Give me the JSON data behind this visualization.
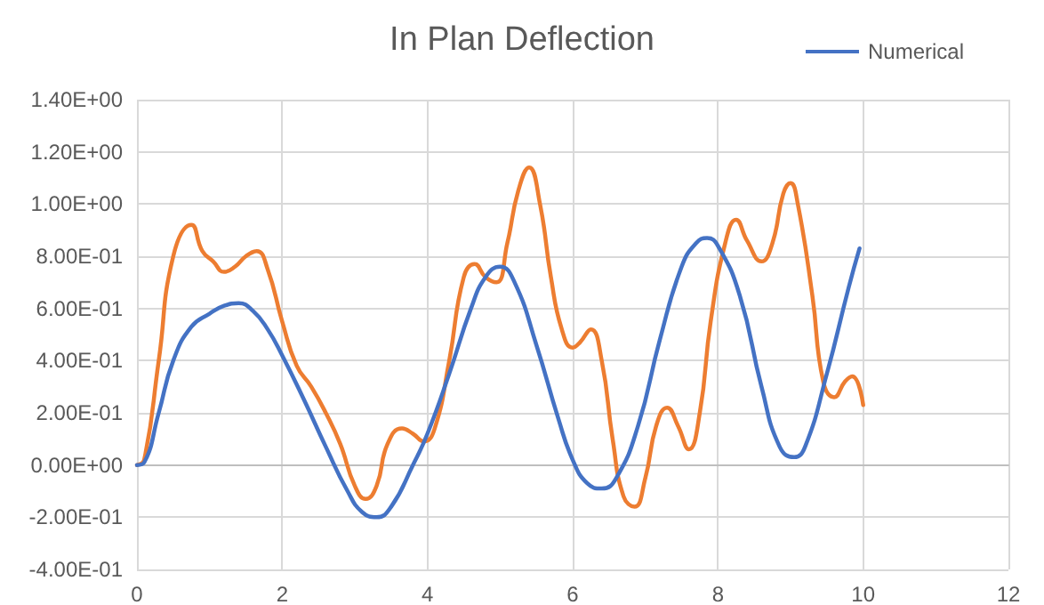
{
  "chart_data": {
    "type": "line",
    "title": "In Plan Deflection",
    "xlim": [
      0,
      12
    ],
    "xticks": [
      0,
      2,
      4,
      6,
      8,
      10,
      12
    ],
    "ylim": [
      -0.4,
      1.4
    ],
    "yticks": [
      {
        "value": -0.4,
        "label": "-4.00E-01"
      },
      {
        "value": -0.2,
        "label": "-2.00E-01"
      },
      {
        "value": 0,
        "label": "0.00E+00"
      },
      {
        "value": 0.2,
        "label": "2.00E-01"
      },
      {
        "value": 0.4,
        "label": "4.00E-01"
      },
      {
        "value": 0.6,
        "label": "6.00E-01"
      },
      {
        "value": 0.8,
        "label": "8.00E-01"
      },
      {
        "value": 1.0,
        "label": "1.00E+00"
      },
      {
        "value": 1.2,
        "label": "1.20E+00"
      },
      {
        "value": 1.4,
        "label": "1.40E+00"
      }
    ],
    "grid": true,
    "legend": "top right",
    "marker": "none",
    "line_style": "solid",
    "series": [
      {
        "color": "#ed7d31",
        "x": [
          0,
          0.1,
          0.3,
          0.5,
          0.75,
          0.9,
          1.05,
          1.2,
          1.35,
          1.5,
          1.65,
          1.8,
          2.0,
          2.2,
          2.4,
          2.6,
          2.8,
          3.0,
          3.15,
          3.3,
          3.45,
          3.65,
          3.8,
          3.95,
          4.1,
          4.3,
          4.5,
          4.65,
          4.8,
          4.95,
          5.1,
          5.25,
          5.4,
          5.55,
          5.7,
          5.85,
          6.0,
          6.1,
          6.25,
          6.4,
          6.55,
          6.7,
          6.85,
          7.0,
          7.15,
          7.3,
          7.45,
          7.6,
          7.75,
          7.9,
          8.1,
          8.25,
          8.4,
          8.6,
          8.75,
          8.9,
          9.0,
          9.1,
          9.3,
          9.45,
          9.6,
          9.75,
          9.85,
          10
        ],
        "values": [
          0,
          0.02,
          0.4,
          0.8,
          0.92,
          0.82,
          0.78,
          0.74,
          0.76,
          0.8,
          0.82,
          0.75,
          0.55,
          0.38,
          0.3,
          0.2,
          0.08,
          -0.08,
          -0.13,
          -0.08,
          0.08,
          0.14,
          0.12,
          0.09,
          0.14,
          0.4,
          0.72,
          0.77,
          0.72,
          0.7,
          0.85,
          1.05,
          1.14,
          1.0,
          0.72,
          0.52,
          0.45,
          0.47,
          0.52,
          0.4,
          0.1,
          -0.12,
          -0.16,
          -0.05,
          0.15,
          0.22,
          0.15,
          0.06,
          0.2,
          0.55,
          0.85,
          0.94,
          0.86,
          0.78,
          0.85,
          1.04,
          1.08,
          1.0,
          0.65,
          0.32,
          0.26,
          0.32,
          0.34,
          0.23
        ]
      },
      {
        "name": "Numerical",
        "color": "#4472c4",
        "x": [
          0,
          0.1,
          0.3,
          0.5,
          0.75,
          1.0,
          1.2,
          1.4,
          1.6,
          1.8,
          2.0,
          2.3,
          2.6,
          2.9,
          3.1,
          3.3,
          3.5,
          3.8,
          4.0,
          4.3,
          4.6,
          4.8,
          5.0,
          5.2,
          5.5,
          5.8,
          6.0,
          6.2,
          6.4,
          6.6,
          6.9,
          7.2,
          7.5,
          7.7,
          7.85,
          8.0,
          8.3,
          8.6,
          8.85,
          9.05,
          9.2,
          9.5,
          9.8,
          9.95
        ],
        "values": [
          0,
          0.01,
          0.2,
          0.4,
          0.53,
          0.58,
          0.61,
          0.62,
          0.59,
          0.52,
          0.42,
          0.25,
          0.07,
          -0.1,
          -0.18,
          -0.2,
          -0.16,
          0.0,
          0.12,
          0.35,
          0.6,
          0.72,
          0.76,
          0.7,
          0.46,
          0.18,
          0.02,
          -0.07,
          -0.09,
          -0.05,
          0.15,
          0.48,
          0.76,
          0.85,
          0.87,
          0.84,
          0.65,
          0.3,
          0.07,
          0.03,
          0.07,
          0.35,
          0.68,
          0.83
        ]
      }
    ]
  }
}
